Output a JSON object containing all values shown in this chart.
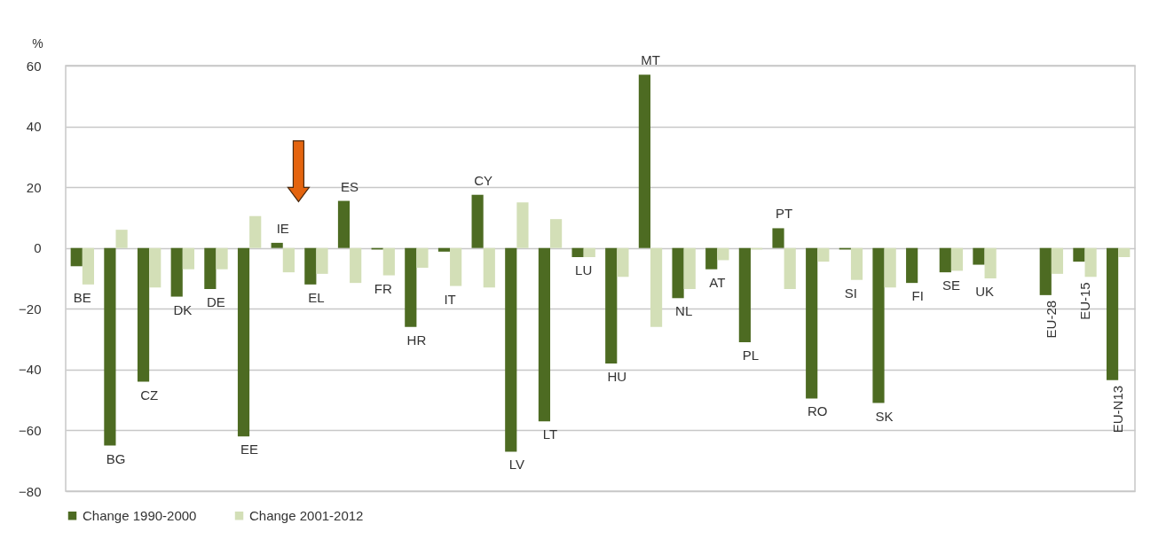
{
  "chart_data": {
    "type": "bar",
    "ylabel": "%",
    "categories": [
      "BE",
      "BG",
      "CZ",
      "DK",
      "DE",
      "EE",
      "IE",
      "EL",
      "ES",
      "FR",
      "HR",
      "IT",
      "CY",
      "LV",
      "LT",
      "LU",
      "HU",
      "MT",
      "NL",
      "AT",
      "PL",
      "PT",
      "RO",
      "SI",
      "SK",
      "FI",
      "SE",
      "UK",
      null,
      "EU-28",
      "EU-15",
      "EU-N13"
    ],
    "series": [
      {
        "name": "Change 1990-2000",
        "color": "#4d6b22",
        "values": [
          -6,
          -65,
          -44,
          -16,
          -13.5,
          -62,
          1.7,
          -12,
          15.5,
          -0.5,
          -26,
          -1.2,
          17.5,
          -67,
          -57,
          -3,
          -38,
          57,
          -16.5,
          -7,
          -31,
          6.5,
          -49.5,
          -0.5,
          -51,
          -11.5,
          -8,
          -5.5,
          null,
          -15.5,
          -4.5,
          -43.5
        ]
      },
      {
        "name": "Change 2001-2012",
        "color": "#d3dfb7",
        "values": [
          -12,
          6,
          -13,
          -7,
          -7,
          10.5,
          -8,
          -8.5,
          -11.5,
          -9,
          -6.5,
          -12.5,
          -13,
          15,
          9.5,
          -3,
          -9.5,
          -26,
          -13.5,
          -4,
          -0.5,
          -13.5,
          -4.5,
          -10.5,
          -13,
          0,
          -7.5,
          -10,
          null,
          -8.5,
          -9.5,
          -3
        ]
      }
    ],
    "ylim": [
      -80,
      60
    ],
    "yticks": [
      -80,
      -60,
      -40,
      -20,
      0,
      20,
      40,
      60
    ],
    "grid": "y",
    "legend": "bottom"
  }
}
